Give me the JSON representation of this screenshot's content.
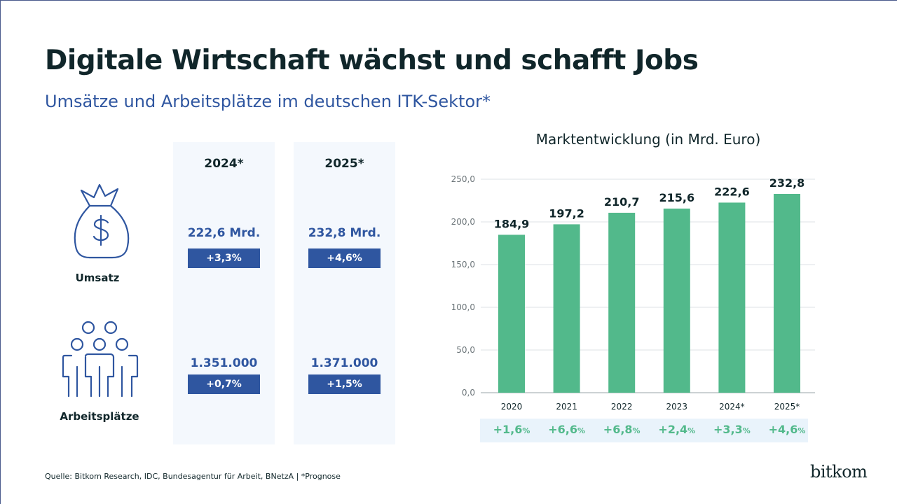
{
  "title": "Digitale Wirtschaft wächst und schafft Jobs",
  "subtitle": "Umsätze und Arbeitsplätze im deutschen ITK-Sektor*",
  "table": {
    "columns": [
      {
        "label": "2024*",
        "umsatz": "222,6 Mrd.",
        "umsatz_change": "+3,3%",
        "jobs": "1.351.000",
        "jobs_change": "+0,7%"
      },
      {
        "label": "2025*",
        "umsatz": "232,8 Mrd.",
        "umsatz_change": "+4,6%",
        "jobs": "1.371.000",
        "jobs_change": "+1,5%"
      }
    ],
    "rows": {
      "umsatz_label": "Umsatz",
      "jobs_label": "Arbeitsplätze"
    },
    "icons": {
      "umsatz": "money-bag-icon",
      "jobs": "people-group-icon"
    }
  },
  "chart_title": "Marktentwicklung (in Mrd. Euro)",
  "chart_data": {
    "type": "bar",
    "categories": [
      "2020",
      "2021",
      "2022",
      "2023",
      "2024*",
      "2025*"
    ],
    "values": [
      184.9,
      197.2,
      210.7,
      215.6,
      222.6,
      232.8
    ],
    "data_labels": [
      "184,9",
      "197,2",
      "210,7",
      "215,6",
      "222,6",
      "232,8"
    ],
    "ylim": [
      0,
      250
    ],
    "yticks": [
      "0,0",
      "50,0",
      "100,0",
      "150,0",
      "200,0",
      "250,0"
    ],
    "grid": true,
    "bar_color": "#52b98b",
    "growth": [
      {
        "value": "+1,6",
        "unit": "%"
      },
      {
        "value": "+6,6",
        "unit": "%"
      },
      {
        "value": "+6,8",
        "unit": "%"
      },
      {
        "value": "+2,4",
        "unit": "%"
      },
      {
        "value": "+3,3",
        "unit": "%"
      },
      {
        "value": "+4,6",
        "unit": "%"
      }
    ]
  },
  "source": "Quelle: Bitkom Research, IDC, Bundesagentur für Arbeit, BNetzA | *Prognose",
  "logo": "bitkom",
  "colors": {
    "accent": "#2f56a0",
    "bar": "#52b98b",
    "panel": "#f4f8fd"
  }
}
